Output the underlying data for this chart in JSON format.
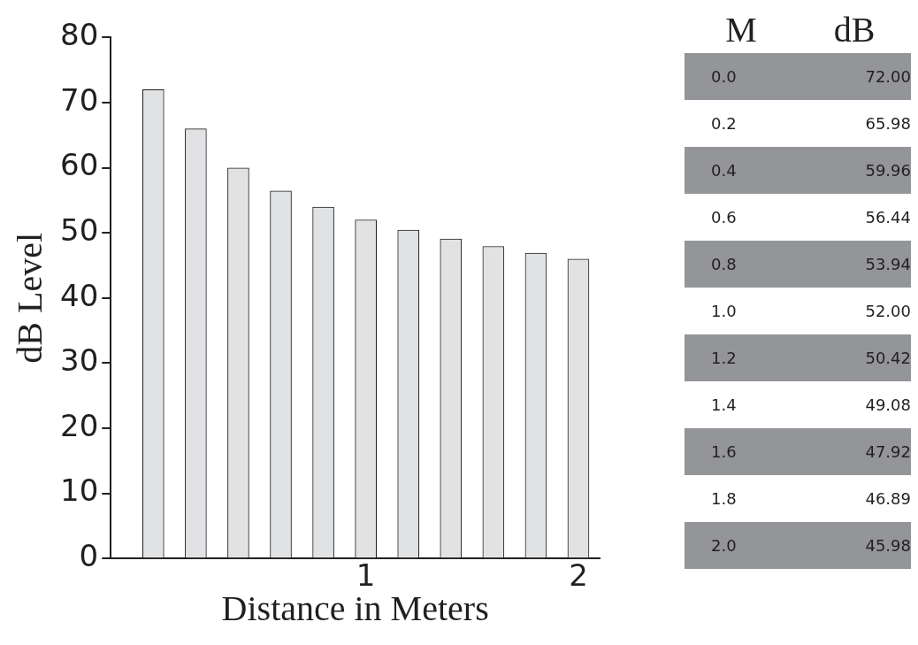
{
  "chart_data": [
    {
      "type": "bar",
      "xlabel": "Distance in Meters",
      "ylabel": "dB Level",
      "x": [
        0,
        0.2,
        0.4,
        0.6,
        0.8,
        1.0,
        1.2,
        1.4,
        1.6,
        1.8,
        2.0
      ],
      "values": [
        72.0,
        65.98,
        59.96,
        56.44,
        53.94,
        52.0,
        50.42,
        49.08,
        47.92,
        46.89,
        45.98
      ],
      "color": "#e1e2e3",
      "xlim": [
        -0.2,
        2.1
      ],
      "xticks": [
        1,
        2
      ],
      "ylim": [
        0,
        80
      ],
      "yticks": [
        0,
        10,
        20,
        30,
        40,
        50,
        60,
        70,
        80
      ],
      "grid": false,
      "legend": false
    },
    {
      "type": "heatmap",
      "ylabel": "M",
      "categories": [
        "dB"
      ],
      "y_categories": [
        "0.0",
        "0.2",
        "0.4",
        "0.6",
        "0.8",
        "1.0",
        "1.2",
        "1.4",
        "1.6",
        "1.8",
        "2.0"
      ],
      "cells": [
        [
          72.0
        ],
        [
          65.98
        ],
        [
          59.96
        ],
        [
          56.44
        ],
        [
          53.94
        ],
        [
          52.0
        ],
        [
          50.42
        ],
        [
          49.08
        ],
        [
          47.92
        ],
        [
          46.89
        ],
        [
          45.98
        ]
      ],
      "cell_labels": [
        [
          "72.00"
        ],
        [
          "65.98"
        ],
        [
          "59.96"
        ],
        [
          "56.44"
        ],
        [
          "53.94"
        ],
        [
          "52.00"
        ],
        [
          "50.42"
        ],
        [
          "49.08"
        ],
        [
          "47.92"
        ],
        [
          "46.89"
        ],
        [
          "45.98"
        ]
      ],
      "color": "#939598"
    }
  ]
}
